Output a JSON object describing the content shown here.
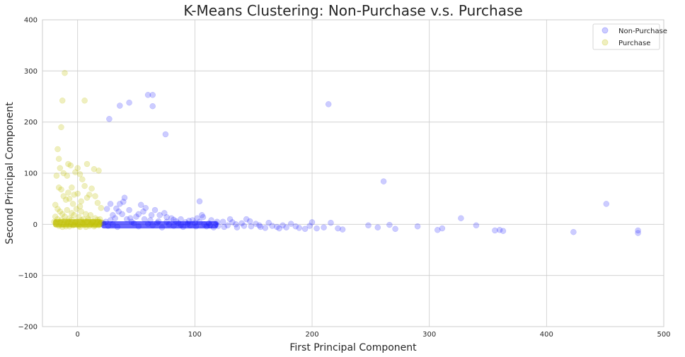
{
  "chart_data": {
    "type": "scatter",
    "title": "K-Means Clustering: Non-Purchase v.s. Purchase",
    "xlabel": "First Principal Component",
    "ylabel": "Second Principal Component",
    "xlim": [
      -30,
      500
    ],
    "ylim": [
      -200,
      400
    ],
    "xticks": [
      0,
      100,
      200,
      300,
      400,
      500
    ],
    "yticks": [
      -200,
      -100,
      0,
      100,
      200,
      300,
      400
    ],
    "grid": true,
    "legend_position": "top-right",
    "series": [
      {
        "name": "Non-Purchase",
        "color": "#0000ff",
        "points": [
          [
            22,
            2
          ],
          [
            24,
            5
          ],
          [
            26,
            -3
          ],
          [
            28,
            8
          ],
          [
            30,
            0
          ],
          [
            32,
            12
          ],
          [
            34,
            -5
          ],
          [
            35,
            25
          ],
          [
            36,
            40
          ],
          [
            38,
            20
          ],
          [
            40,
            52
          ],
          [
            42,
            10
          ],
          [
            44,
            28
          ],
          [
            46,
            5
          ],
          [
            48,
            2
          ],
          [
            50,
            15
          ],
          [
            52,
            -4
          ],
          [
            54,
            38
          ],
          [
            56,
            25
          ],
          [
            58,
            32
          ],
          [
            60,
            1
          ],
          [
            62,
            8
          ],
          [
            64,
            -2
          ],
          [
            66,
            28
          ],
          [
            68,
            3
          ],
          [
            70,
            18
          ],
          [
            72,
            -6
          ],
          [
            74,
            22
          ],
          [
            76,
            5
          ],
          [
            78,
            0
          ],
          [
            80,
            12
          ],
          [
            82,
            -3
          ],
          [
            84,
            6
          ],
          [
            86,
            2
          ],
          [
            88,
            10
          ],
          [
            90,
            -5
          ],
          [
            92,
            4
          ],
          [
            94,
            1
          ],
          [
            96,
            -2
          ],
          [
            98,
            8
          ],
          [
            100,
            3
          ],
          [
            102,
            12
          ],
          [
            104,
            5
          ],
          [
            106,
            18
          ],
          [
            108,
            0
          ],
          [
            110,
            -4
          ],
          [
            112,
            2
          ],
          [
            114,
            8
          ],
          [
            116,
            -6
          ],
          [
            118,
            1
          ],
          [
            120,
            -3
          ],
          [
            124,
            5
          ],
          [
            128,
            -2
          ],
          [
            132,
            4
          ],
          [
            136,
            -6
          ],
          [
            140,
            2
          ],
          [
            144,
            10
          ],
          [
            148,
            -4
          ],
          [
            152,
            1
          ],
          [
            156,
            -5
          ],
          [
            160,
            -7
          ],
          [
            166,
            -3
          ],
          [
            172,
            -8
          ],
          [
            178,
            -6
          ],
          [
            186,
            -4
          ],
          [
            194,
            -9
          ],
          [
            200,
            4
          ],
          [
            204,
            -8
          ],
          [
            210,
            -6
          ],
          [
            216,
            3
          ],
          [
            222,
            -8
          ],
          [
            226,
            -10
          ],
          [
            248,
            -2
          ],
          [
            256,
            -6
          ],
          [
            266,
            -1
          ],
          [
            271,
            -9
          ],
          [
            290,
            -4
          ],
          [
            307,
            -11
          ],
          [
            311,
            -8
          ],
          [
            327,
            12
          ],
          [
            340,
            -2
          ],
          [
            356,
            -12
          ],
          [
            360,
            -11
          ],
          [
            363,
            -13
          ],
          [
            423,
            -15
          ],
          [
            478,
            -12
          ],
          [
            478,
            -17
          ],
          [
            451,
            40
          ],
          [
            36,
            232
          ],
          [
            44,
            238
          ],
          [
            60,
            253
          ],
          [
            64,
            253
          ],
          [
            64,
            231
          ],
          [
            27,
            206
          ],
          [
            75,
            176
          ],
          [
            214,
            235
          ],
          [
            261,
            84
          ],
          [
            104,
            45
          ],
          [
            25,
            30
          ],
          [
            30,
            18
          ],
          [
            28,
            40
          ],
          [
            33,
            31
          ],
          [
            39,
            44
          ],
          [
            45,
            12
          ],
          [
            52,
            20
          ],
          [
            57,
            10
          ],
          [
            63,
            18
          ],
          [
            69,
            6
          ],
          [
            76,
            14
          ],
          [
            82,
            9
          ],
          [
            88,
            -1
          ],
          [
            95,
            7
          ],
          [
            101,
            -4
          ],
          [
            107,
            14
          ],
          [
            113,
            -2
          ],
          [
            119,
            5
          ],
          [
            125,
            -5
          ],
          [
            130,
            10
          ],
          [
            135,
            0
          ],
          [
            142,
            -3
          ],
          [
            147,
            6
          ],
          [
            155,
            -2
          ],
          [
            163,
            3
          ],
          [
            170,
            -5
          ],
          [
            175,
            -2
          ],
          [
            182,
            1
          ],
          [
            189,
            -7
          ],
          [
            198,
            -3
          ]
        ]
      },
      {
        "name": "Purchase",
        "color": "#bfbf00",
        "points": [
          [
            -11,
            296
          ],
          [
            -13,
            242
          ],
          [
            6,
            242
          ],
          [
            -14,
            190
          ],
          [
            -17,
            147
          ],
          [
            -16,
            128
          ],
          [
            -15,
            110
          ],
          [
            -12,
            100
          ],
          [
            -9,
            95
          ],
          [
            -8,
            118
          ],
          [
            -6,
            115
          ],
          [
            -2,
            102
          ],
          [
            0,
            110
          ],
          [
            2,
            98
          ],
          [
            4,
            88
          ],
          [
            8,
            118
          ],
          [
            14,
            108
          ],
          [
            18,
            105
          ],
          [
            -18,
            95
          ],
          [
            -16,
            72
          ],
          [
            -14,
            68
          ],
          [
            -12,
            55
          ],
          [
            -10,
            48
          ],
          [
            -8,
            62
          ],
          [
            -5,
            72
          ],
          [
            -3,
            58
          ],
          [
            0,
            60
          ],
          [
            3,
            45
          ],
          [
            6,
            75
          ],
          [
            8,
            52
          ],
          [
            10,
            58
          ],
          [
            12,
            70
          ],
          [
            15,
            55
          ],
          [
            17,
            42
          ],
          [
            20,
            32
          ],
          [
            -19,
            38
          ],
          [
            -17,
            30
          ],
          [
            -15,
            25
          ],
          [
            -13,
            20
          ],
          [
            -11,
            15
          ],
          [
            -9,
            28
          ],
          [
            -7,
            12
          ],
          [
            -5,
            22
          ],
          [
            -3,
            18
          ],
          [
            -1,
            30
          ],
          [
            1,
            14
          ],
          [
            3,
            25
          ],
          [
            5,
            10
          ],
          [
            7,
            20
          ],
          [
            9,
            8
          ],
          [
            11,
            18
          ],
          [
            13,
            6
          ],
          [
            15,
            12
          ],
          [
            17,
            5
          ],
          [
            19,
            10
          ],
          [
            21,
            3
          ],
          [
            -20,
            5
          ],
          [
            -18,
            2
          ],
          [
            -16,
            -3
          ],
          [
            -14,
            8
          ],
          [
            -12,
            0
          ],
          [
            -10,
            -4
          ],
          [
            -8,
            6
          ],
          [
            -6,
            1
          ],
          [
            -4,
            -2
          ],
          [
            -2,
            4
          ],
          [
            0,
            0
          ],
          [
            2,
            -5
          ],
          [
            4,
            3
          ],
          [
            6,
            -1
          ],
          [
            8,
            5
          ],
          [
            10,
            -3
          ],
          [
            12,
            2
          ],
          [
            14,
            -4
          ],
          [
            16,
            1
          ],
          [
            18,
            -2
          ],
          [
            20,
            4
          ],
          [
            -19,
            15
          ],
          [
            -17,
            10
          ],
          [
            -15,
            3
          ],
          [
            -13,
            -5
          ],
          [
            -11,
            7
          ],
          [
            -9,
            2
          ],
          [
            -7,
            -4
          ],
          [
            -5,
            9
          ],
          [
            -3,
            -1
          ],
          [
            -1,
            6
          ],
          [
            1,
            -3
          ],
          [
            3,
            8
          ],
          [
            5,
            2
          ],
          [
            7,
            -5
          ],
          [
            9,
            11
          ],
          [
            11,
            0
          ],
          [
            13,
            4
          ],
          [
            15,
            -2
          ],
          [
            17,
            9
          ],
          [
            19,
            0
          ],
          [
            -4,
            40
          ],
          [
            2,
            35
          ],
          [
            -7,
            50
          ]
        ]
      }
    ]
  }
}
